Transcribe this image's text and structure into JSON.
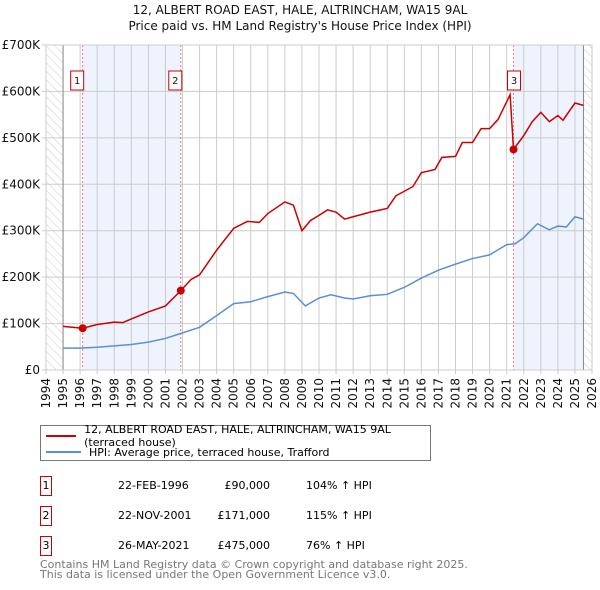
{
  "chart_data": {
    "type": "line",
    "title": "12, ALBERT ROAD EAST, HALE, ALTRINCHAM, WA15 9AL",
    "subtitle": "Price paid vs. HM Land Registry's House Price Index (HPI)",
    "xlim": [
      1994,
      2026
    ],
    "ylim": [
      0,
      700000
    ],
    "x_ticks": [
      "1994",
      "1995",
      "1996",
      "1997",
      "1998",
      "1999",
      "2000",
      "2001",
      "2002",
      "2003",
      "2004",
      "2005",
      "2006",
      "2007",
      "2008",
      "2009",
      "2010",
      "2011",
      "2012",
      "2013",
      "2014",
      "2015",
      "2016",
      "2017",
      "2018",
      "2019",
      "2020",
      "2021",
      "2022",
      "2023",
      "2024",
      "2025",
      "2026"
    ],
    "y_ticks": [
      {
        "v": 0,
        "l": "£0"
      },
      {
        "v": 100000,
        "l": "£100K"
      },
      {
        "v": 200000,
        "l": "£200K"
      },
      {
        "v": 300000,
        "l": "£300K"
      },
      {
        "v": 400000,
        "l": "£400K"
      },
      {
        "v": 500000,
        "l": "£500K"
      },
      {
        "v": 600000,
        "l": "£600K"
      },
      {
        "v": 700000,
        "l": "£700K"
      }
    ],
    "grid": true,
    "series": [
      {
        "name": "12, ALBERT ROAD EAST, HALE, ALTRINCHAM, WA15 9AL (terraced house)",
        "color": "#cc0000",
        "x": [
          1995,
          1996.15,
          1997,
          1998,
          1998.5,
          1999,
          2000,
          2001,
          2001.9,
          2002.5,
          2003,
          2004,
          2005,
          2005.8,
          2006.5,
          2007,
          2008,
          2008.5,
          2009,
          2009.5,
          2010,
          2010.5,
          2011,
          2011.5,
          2012,
          2013,
          2014,
          2014.5,
          2015,
          2015.5,
          2016,
          2016.8,
          2017.2,
          2018,
          2018.4,
          2019,
          2019.5,
          2020,
          2020.5,
          2021.2,
          2021.4,
          2022,
          2022.5,
          2023,
          2023.5,
          2024,
          2024.3,
          2025,
          2025.5
        ],
        "y": [
          94000,
          90000,
          98000,
          103000,
          102000,
          110000,
          125000,
          138000,
          171000,
          195000,
          205000,
          258000,
          305000,
          320000,
          318000,
          337000,
          362000,
          355000,
          300000,
          322000,
          333000,
          345000,
          340000,
          325000,
          330000,
          340000,
          348000,
          375000,
          385000,
          395000,
          425000,
          432000,
          458000,
          460000,
          490000,
          490000,
          520000,
          520000,
          540000,
          593000,
          475000,
          505000,
          535000,
          555000,
          535000,
          548000,
          538000,
          575000,
          570000
        ]
      },
      {
        "name": "HPI: Average price, terraced house, Trafford",
        "color": "#5b8fd4",
        "x": [
          1995,
          1996,
          1997,
          1998,
          1999,
          2000,
          2001,
          2002,
          2003,
          2004,
          2005,
          2006,
          2007,
          2008,
          2008.5,
          2009.2,
          2010,
          2010.7,
          2011.5,
          2012,
          2013,
          2014,
          2015,
          2016,
          2017,
          2018,
          2019,
          2020,
          2021,
          2021.5,
          2022,
          2022.8,
          2023.5,
          2024,
          2024.5,
          2025,
          2025.5
        ],
        "y": [
          47000,
          47000,
          49000,
          52000,
          55000,
          60000,
          68000,
          80000,
          92000,
          117000,
          143000,
          147000,
          158000,
          168000,
          165000,
          138000,
          155000,
          162000,
          155000,
          153000,
          160000,
          163000,
          178000,
          198000,
          215000,
          228000,
          240000,
          248000,
          270000,
          272000,
          285000,
          315000,
          302000,
          310000,
          308000,
          330000,
          325000
        ]
      }
    ],
    "sales": [
      {
        "n": "1",
        "x": 1996.15,
        "price": 90000,
        "date": "22-FEB-1996",
        "price_label": "£90,000",
        "hpi": "104% ↑ HPI"
      },
      {
        "n": "2",
        "x": 2001.9,
        "price": 171000,
        "date": "22-NOV-2001",
        "price_label": "£171,000",
        "hpi": "115% ↑ HPI"
      },
      {
        "n": "3",
        "x": 2021.4,
        "price": 475000,
        "date": "26-MAY-2021",
        "price_label": "£475,000",
        "hpi": "76% ↑ HPI"
      }
    ],
    "shaded_ranges": [
      [
        1996.15,
        2001.9
      ],
      [
        2021.4,
        2025.5
      ]
    ],
    "hatched_ranges": [
      [
        1994,
        1995
      ],
      [
        2025.5,
        2026
      ]
    ],
    "legend_position": "below"
  },
  "footer": [
    "Contains HM Land Registry data © Crown copyright and database right 2025.",
    "This data is licensed under the Open Government Licence v3.0."
  ]
}
